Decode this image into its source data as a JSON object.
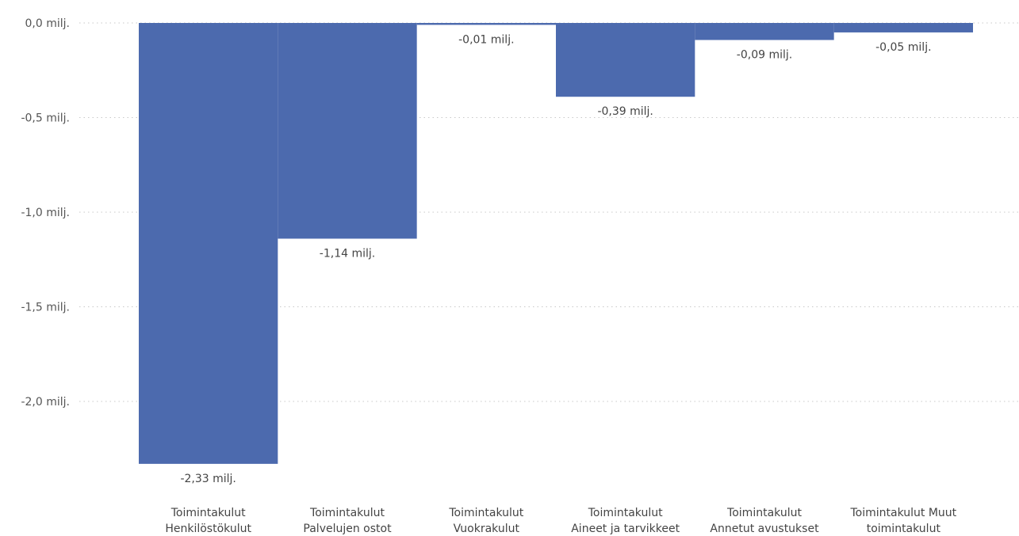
{
  "chart_data": {
    "type": "bar",
    "title": "",
    "xlabel": "",
    "ylabel": "",
    "categories": [
      [
        "Toimintakulut",
        "Henkilöstökulut"
      ],
      [
        "Toimintakulut",
        "Palvelujen ostot"
      ],
      [
        "Toimintakulut",
        "Vuokrakulut"
      ],
      [
        "Toimintakulut",
        "Aineet ja tarvikkeet"
      ],
      [
        "Toimintakulut",
        "Annetut avustukset"
      ],
      [
        "Toimintakulut Muut",
        "toimintakulut"
      ]
    ],
    "values": [
      -2.33,
      -1.14,
      -0.01,
      -0.39,
      -0.09,
      -0.05
    ],
    "data_labels": [
      "-2,33 milj.",
      "-1,14 milj.",
      "-0,01 milj.",
      "-0,39 milj.",
      "-0,09 milj.",
      "-0,05 milj."
    ],
    "ylim": [
      -2.4,
      0.0
    ],
    "y_ticks": [
      0.0,
      -0.5,
      -1.0,
      -1.5,
      -2.0
    ],
    "y_tick_labels": [
      "0,0 milj.",
      "-0,5 milj.",
      "-1,0 milj.",
      "-1,5 milj.",
      "-2,0 milj."
    ],
    "grid": true,
    "legend": "none",
    "bar_color": "#4c6aae"
  }
}
